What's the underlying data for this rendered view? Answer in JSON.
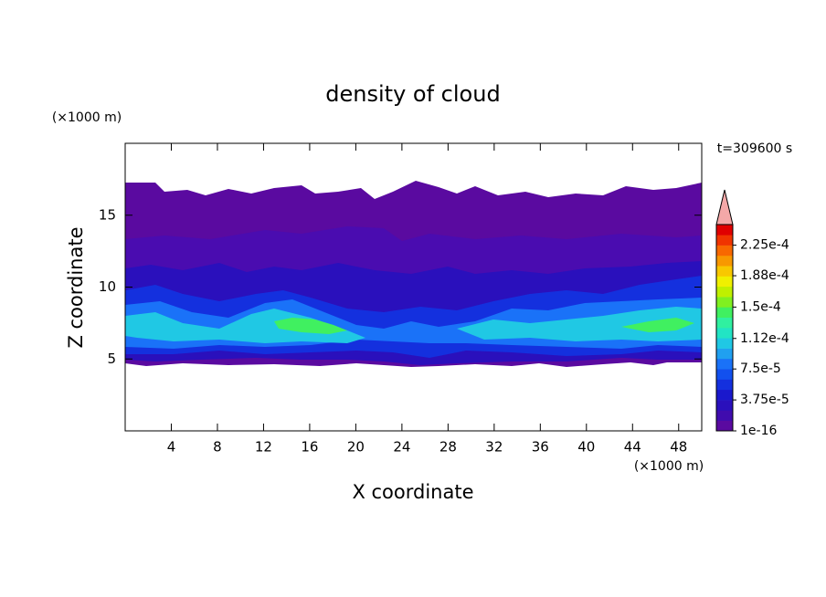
{
  "chart_data": {
    "type": "contour",
    "title": "density of cloud",
    "x_label": "X coordinate",
    "y_label": "Z coordinate",
    "x_unit": "(×1000 m)",
    "y_unit": "(×1000 m)",
    "annotation": "t=309600 s",
    "xlim": [
      0,
      50
    ],
    "ylim": [
      0,
      20
    ],
    "xticks": [
      4,
      8,
      12,
      16,
      20,
      24,
      28,
      32,
      36,
      40,
      44,
      48
    ],
    "yticks": [
      5,
      10,
      15
    ],
    "colorbar": {
      "lim": [
        1e-16,
        0.00025
      ],
      "colors": [
        "#5a0aa0",
        "#400cae",
        "#2a10bc",
        "#1a18cc",
        "#1430de",
        "#1250ee",
        "#1a72f8",
        "#20a0f0",
        "#20c8e4",
        "#22e4c4",
        "#30f0a0",
        "#40f060",
        "#80f020",
        "#c0f000",
        "#f0f000",
        "#f8c800",
        "#f89800",
        "#f86800",
        "#f03400",
        "#e00000"
      ],
      "extend_color": "#f4a8a8",
      "ticks": [
        {
          "value": 1e-16,
          "label": "1e-16"
        },
        {
          "value": 3.75e-05,
          "label": "3.75e-5"
        },
        {
          "value": 7.5e-05,
          "label": "7.5e-5"
        },
        {
          "value": 0.000112,
          "label": "1.12e-4"
        },
        {
          "value": 0.00015,
          "label": "1.5e-4"
        },
        {
          "value": 0.000188,
          "label": "1.88e-4"
        },
        {
          "value": 0.000225,
          "label": "2.25e-4"
        }
      ]
    }
  }
}
